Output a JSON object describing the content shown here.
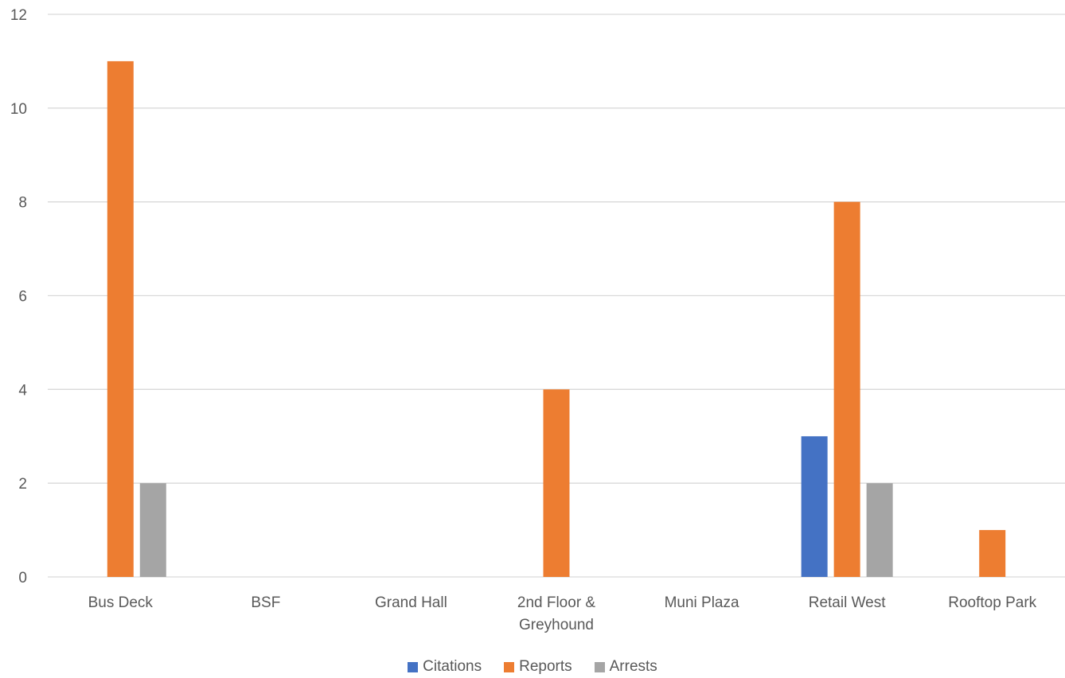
{
  "chart_data": {
    "type": "bar",
    "categories": [
      "Bus Deck",
      "BSF",
      "Grand Hall",
      "2nd Floor & Greyhound",
      "Muni Plaza",
      "Retail West",
      "Rooftop Park"
    ],
    "category_lines": [
      [
        "Bus Deck"
      ],
      [
        "BSF"
      ],
      [
        "Grand Hall"
      ],
      [
        "2nd Floor &",
        "Greyhound"
      ],
      [
        "Muni Plaza"
      ],
      [
        "Retail West"
      ],
      [
        "Rooftop Park"
      ]
    ],
    "series": [
      {
        "name": "Citations",
        "color": "#4472C4",
        "values": [
          0,
          0,
          0,
          0,
          0,
          3,
          0
        ]
      },
      {
        "name": "Reports",
        "color": "#ED7D31",
        "values": [
          11,
          0,
          0,
          4,
          0,
          8,
          1
        ]
      },
      {
        "name": "Arrests",
        "color": "#A5A5A5",
        "values": [
          2,
          0,
          0,
          0,
          0,
          2,
          0
        ]
      }
    ],
    "ylim": [
      0,
      12
    ],
    "yticks": [
      0,
      2,
      4,
      6,
      8,
      10,
      12
    ],
    "grid": true,
    "legend": "bottom",
    "title": "",
    "xlabel": "",
    "ylabel": ""
  }
}
